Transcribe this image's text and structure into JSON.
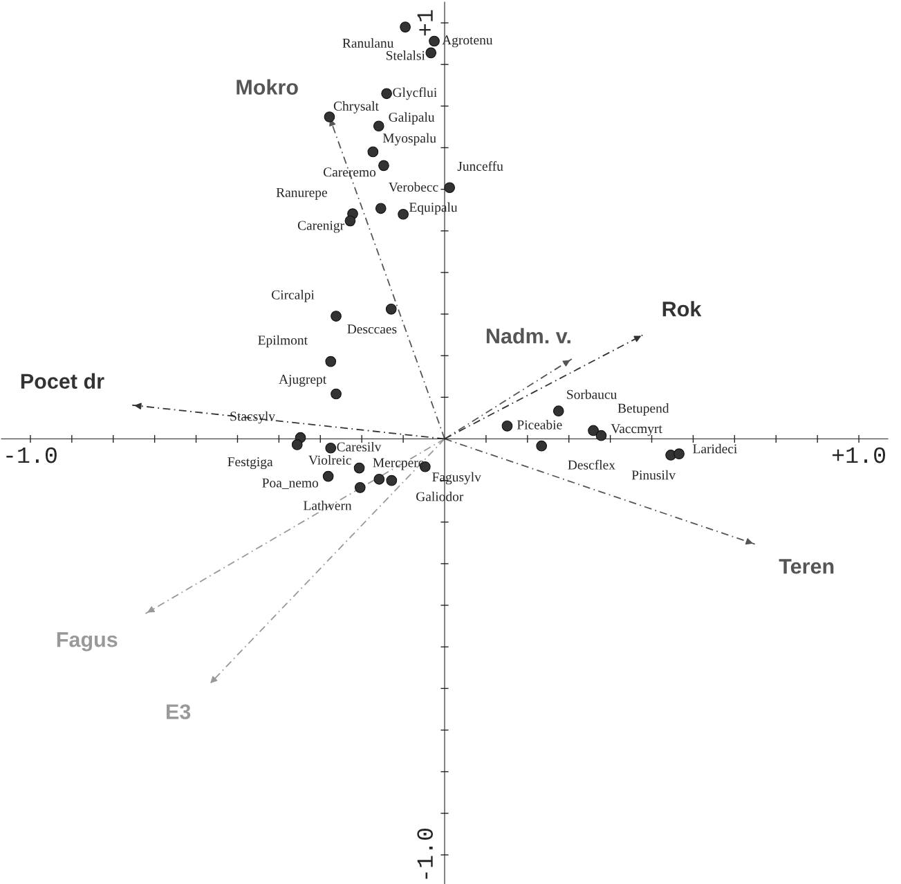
{
  "chart_data": {
    "type": "scatter",
    "marker": "circle",
    "line_style": "dashed",
    "xlim": [
      -1.07,
      1.07
    ],
    "ylim": [
      -1.07,
      1.05
    ],
    "xticks": [
      {
        "value": -1.0,
        "label": "-1.0"
      },
      {
        "value": -0.9,
        "label": null
      },
      {
        "value": -0.8,
        "label": null
      },
      {
        "value": -0.7,
        "label": null
      },
      {
        "value": -0.6,
        "label": null
      },
      {
        "value": -0.5,
        "label": null
      },
      {
        "value": -0.4,
        "label": null
      },
      {
        "value": -0.3,
        "label": null
      },
      {
        "value": -0.2,
        "label": null
      },
      {
        "value": -0.1,
        "label": null
      },
      {
        "value": 0.1,
        "label": null
      },
      {
        "value": 0.2,
        "label": null
      },
      {
        "value": 0.3,
        "label": null
      },
      {
        "value": 0.4,
        "label": null
      },
      {
        "value": 0.5,
        "label": null
      },
      {
        "value": 0.6,
        "label": null
      },
      {
        "value": 0.7,
        "label": null
      },
      {
        "value": 0.8,
        "label": null
      },
      {
        "value": 0.9,
        "label": null
      },
      {
        "value": 1.0,
        "label": "+1.0"
      }
    ],
    "yticks": [
      {
        "value": -1.0,
        "label": "-1.0"
      },
      {
        "value": -0.9,
        "label": null
      },
      {
        "value": -0.8,
        "label": null
      },
      {
        "value": -0.7,
        "label": null
      },
      {
        "value": -0.6,
        "label": null
      },
      {
        "value": -0.5,
        "label": null
      },
      {
        "value": -0.4,
        "label": null
      },
      {
        "value": -0.3,
        "label": null
      },
      {
        "value": -0.2,
        "label": null
      },
      {
        "value": -0.1,
        "label": null
      },
      {
        "value": 0.1,
        "label": null
      },
      {
        "value": 0.2,
        "label": null
      },
      {
        "value": 0.3,
        "label": null
      },
      {
        "value": 0.4,
        "label": null
      },
      {
        "value": 0.5,
        "label": null
      },
      {
        "value": 0.6,
        "label": null
      },
      {
        "value": 0.7,
        "label": null
      },
      {
        "value": 0.8,
        "label": null
      },
      {
        "value": 0.9,
        "label": null
      },
      {
        "value": 1.0,
        "label": "+1"
      }
    ],
    "series": [
      {
        "color": "#333333",
        "x": [
          -0.095,
          -0.025,
          -0.033,
          -0.14,
          -0.159,
          -0.173,
          -0.147,
          0.012,
          -0.154,
          -0.1,
          -0.222,
          -0.228,
          -0.278,
          -0.262,
          -0.129,
          -0.275,
          -0.262,
          -0.348,
          -0.356,
          -0.275,
          -0.206,
          -0.158,
          -0.128,
          -0.047,
          -0.281,
          -0.204,
          0.151,
          0.275,
          0.359,
          0.378,
          0.234,
          0.546,
          0.566
        ],
        "values": [
          0.99,
          0.956,
          0.928,
          0.83,
          0.752,
          0.69,
          0.657,
          0.604,
          0.554,
          0.54,
          0.541,
          0.524,
          0.774,
          0.295,
          0.312,
          0.186,
          0.108,
          0.003,
          -0.014,
          -0.022,
          -0.07,
          -0.097,
          -0.1,
          -0.067,
          -0.09,
          -0.117,
          0.031,
          0.067,
          0.02,
          0.008,
          -0.017,
          -0.039,
          -0.036
        ],
        "value_labels": [
          "Ranulanu",
          "Agrotenu",
          "Stelalsi",
          "Glycflui",
          "Galipalu",
          "Myospalu",
          "Careremo",
          "Junceffu",
          "Verobecc",
          "Equipalu",
          "Ranurepe",
          "Carenigr",
          "Chrysalt",
          "Circalpi",
          "Desccaes",
          "Epilmont",
          "Ajugrept",
          "Stacsylv",
          "Festgiga",
          "Caresilv",
          "Violreic",
          "Mercpere",
          "Galiodor",
          "Fagusylv",
          "Poa_nemo",
          "Lathvern",
          "Piceabie",
          "Sorbaucu",
          "Betupend",
          "Vaccmyrt",
          "Descflex",
          "Pinusilv",
          "Larideci"
        ]
      },
      {
        "type": "line",
        "marker": "none",
        "name": "Mokro",
        "color": "#555555",
        "x": [
          0,
          -0.278
        ],
        "values": [
          0,
          0.774
        ]
      },
      {
        "type": "line",
        "marker": "none",
        "name": "Pocet dr",
        "color": "#333333",
        "x": [
          0,
          -0.754
        ],
        "values": [
          0,
          0.081
        ]
      },
      {
        "type": "line",
        "marker": "none",
        "name": "Nadm. v.",
        "color": "#555555",
        "x": [
          0,
          0.307
        ],
        "values": [
          0,
          0.192
        ]
      },
      {
        "type": "line",
        "marker": "none",
        "name": "Rok",
        "color": "#333333",
        "x": [
          0,
          0.479
        ],
        "values": [
          0,
          0.25
        ]
      },
      {
        "type": "line",
        "marker": "none",
        "name": "Teren",
        "color": "#555555",
        "x": [
          0,
          0.749
        ],
        "values": [
          0,
          -0.253
        ]
      },
      {
        "type": "line",
        "marker": "none",
        "name": "Fagus",
        "color": "#999999",
        "x": [
          0,
          -0.722
        ],
        "values": [
          0,
          -0.42
        ]
      },
      {
        "type": "line",
        "marker": "none",
        "name": "E3",
        "color": "#999999",
        "x": [
          0,
          -0.569
        ],
        "values": [
          0,
          -0.591
        ]
      }
    ],
    "grid": false
  }
}
